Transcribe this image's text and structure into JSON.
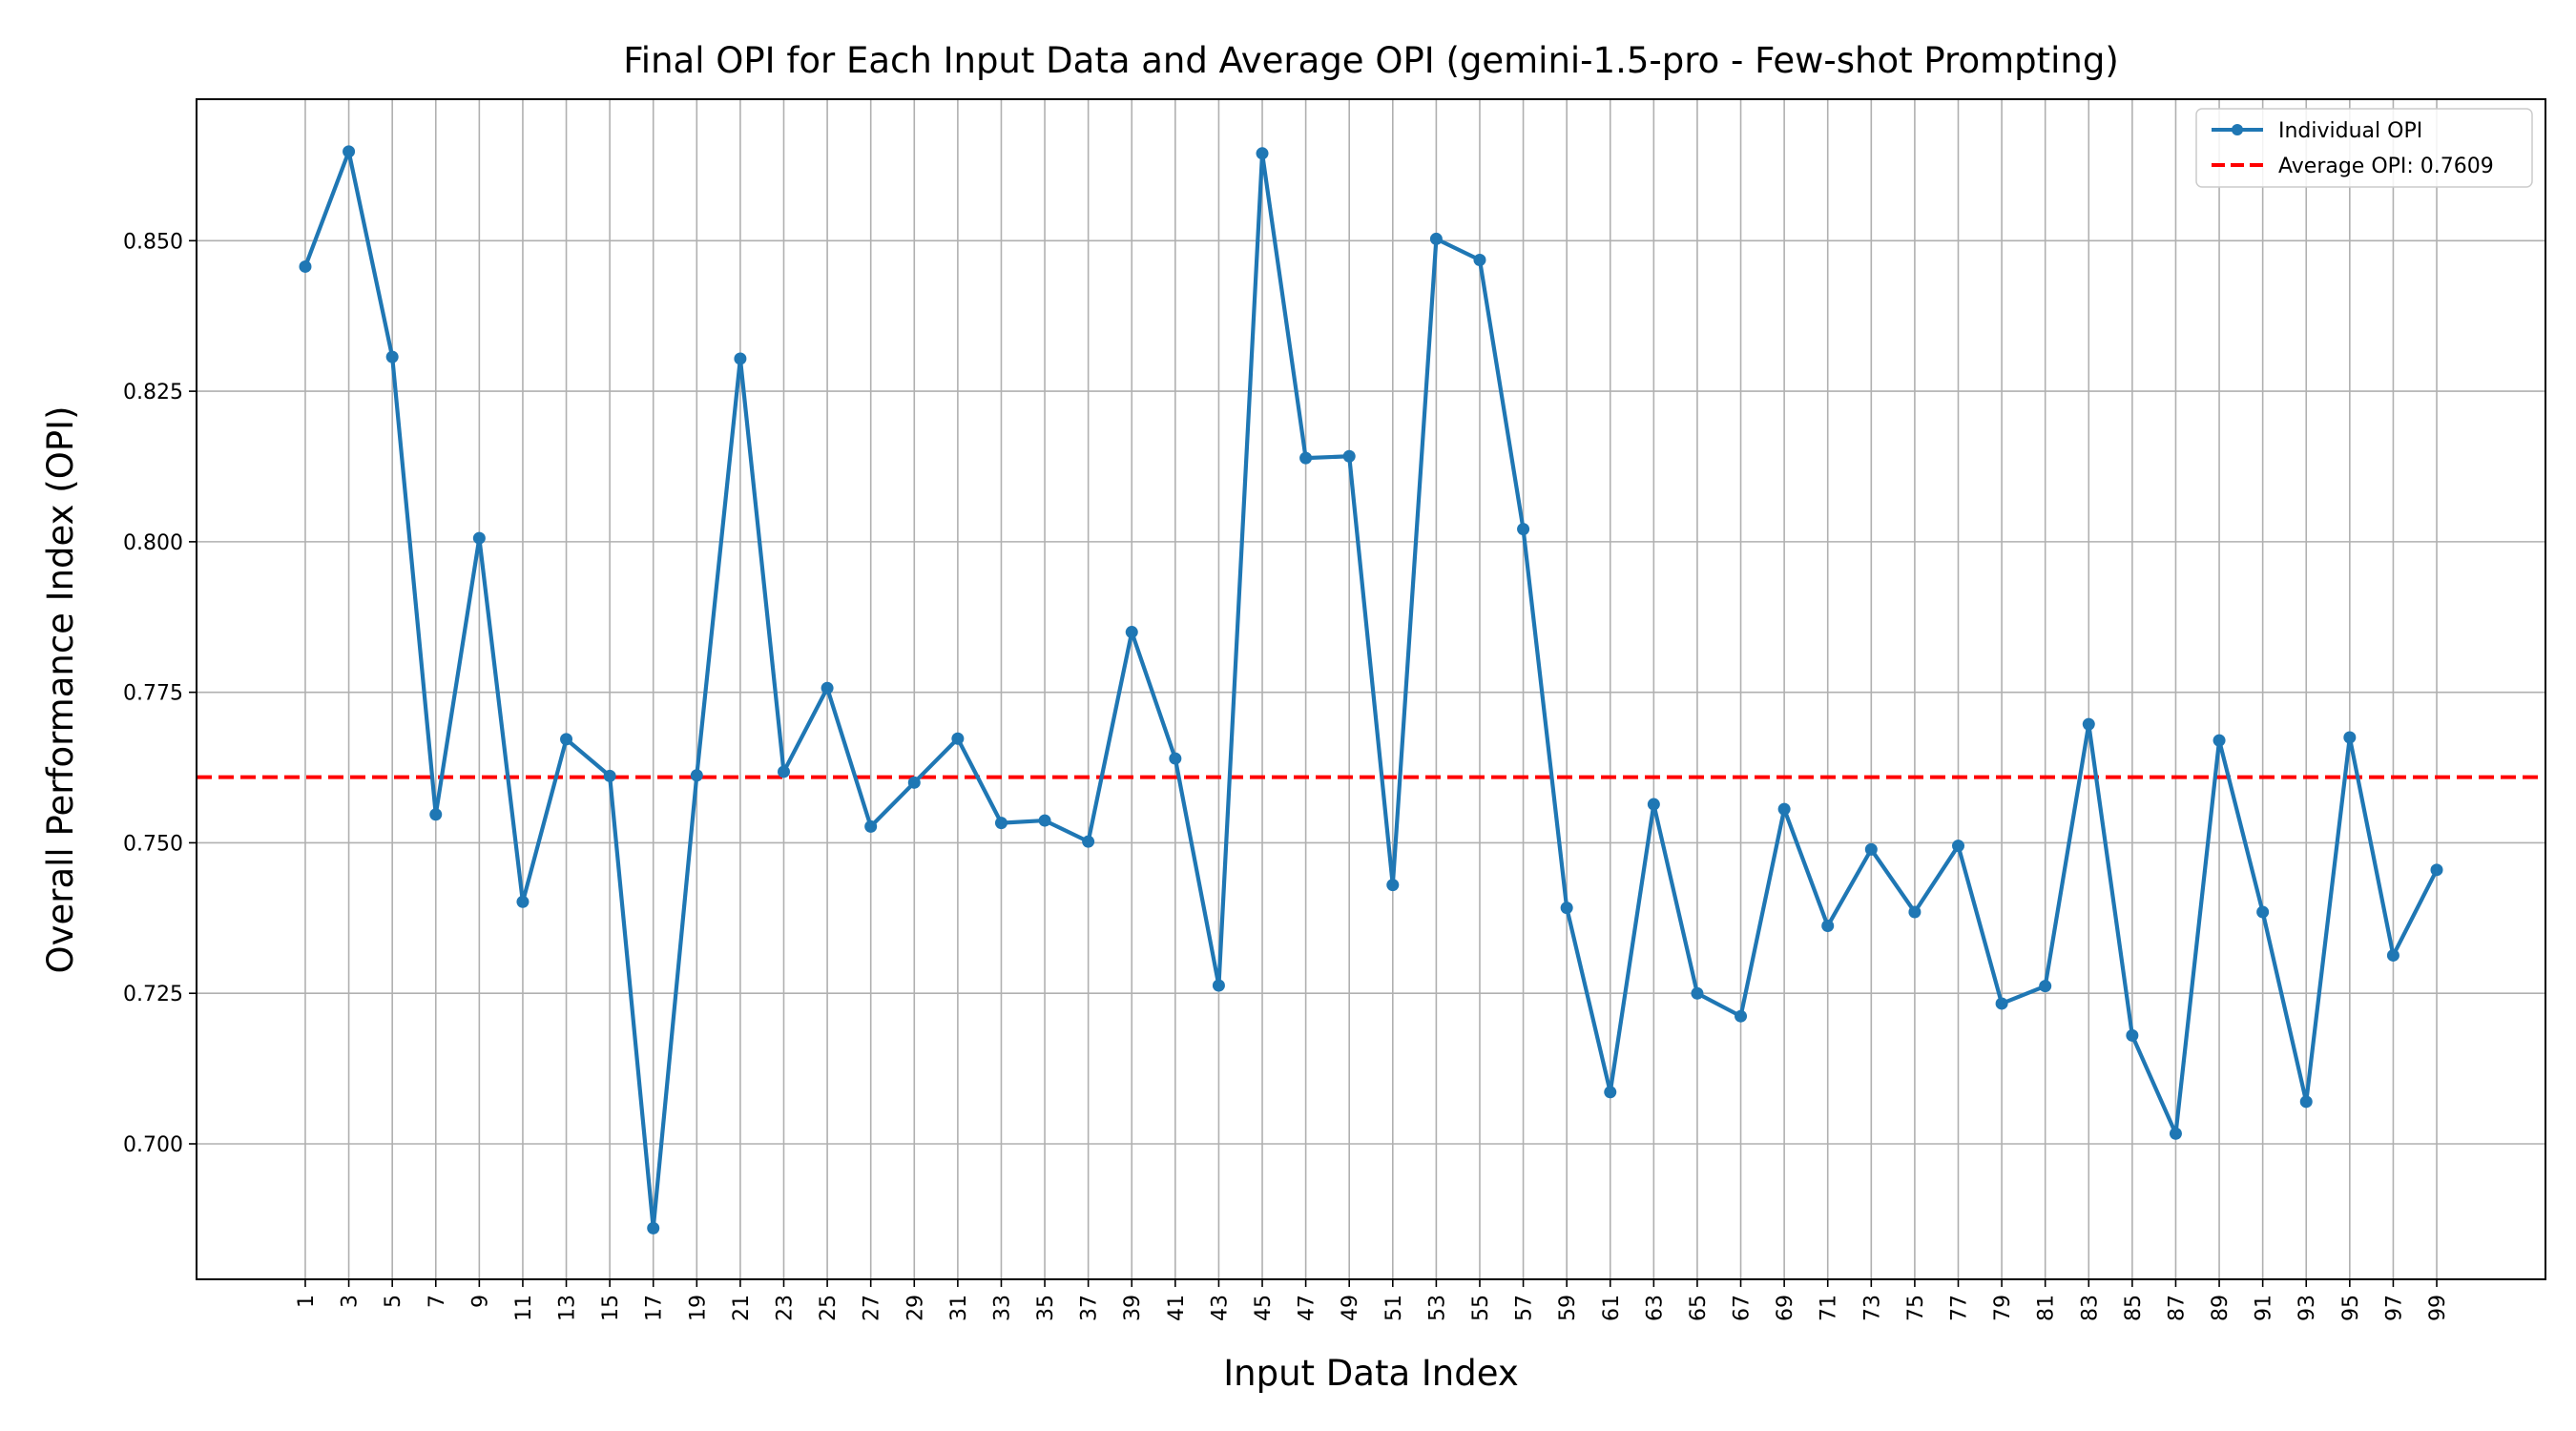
{
  "chart_data": {
    "type": "line",
    "title": "Final OPI for Each Input Data and Average OPI (gemini-1.5-pro - Few-shot Prompting)",
    "xlabel": "Input Data Index",
    "ylabel": "Overall Performance Index (OPI)",
    "x": [
      1,
      3,
      5,
      7,
      9,
      11,
      13,
      15,
      17,
      19,
      21,
      23,
      25,
      27,
      29,
      31,
      33,
      35,
      37,
      39,
      41,
      43,
      45,
      47,
      49,
      51,
      53,
      55,
      57,
      59,
      61,
      63,
      65,
      67,
      69,
      71,
      73,
      75,
      77,
      79,
      81,
      83,
      85,
      87,
      89,
      91,
      93,
      95,
      97,
      99
    ],
    "x_tick_labels": [
      "1",
      "3",
      "5",
      "7",
      "9",
      "11",
      "13",
      "15",
      "17",
      "19",
      "21",
      "23",
      "25",
      "27",
      "29",
      "31",
      "33",
      "35",
      "37",
      "39",
      "41",
      "43",
      "45",
      "47",
      "49",
      "51",
      "53",
      "55",
      "57",
      "59",
      "61",
      "63",
      "65",
      "67",
      "69",
      "71",
      "73",
      "75",
      "77",
      "79",
      "81",
      "83",
      "85",
      "87",
      "89",
      "91",
      "93",
      "95",
      "97",
      "99"
    ],
    "y_ticks": [
      0.7,
      0.725,
      0.75,
      0.775,
      0.8,
      0.825,
      0.85
    ],
    "y_tick_labels": [
      "0.700",
      "0.725",
      "0.750",
      "0.775",
      "0.800",
      "0.825",
      "0.850"
    ],
    "xlim": [
      -4,
      104
    ],
    "ylim": [
      0.6775,
      0.8735
    ],
    "grid": true,
    "legend_position": "top-right",
    "series": [
      {
        "name": "Individual OPI",
        "color": "#1f77b4",
        "style": "solid-with-markers",
        "values": [
          0.8457,
          0.8648,
          0.8307,
          0.7547,
          0.8006,
          0.7402,
          0.7672,
          0.7611,
          0.686,
          0.7612,
          0.8304,
          0.7618,
          0.7757,
          0.7527,
          0.76,
          0.7673,
          0.7533,
          0.7537,
          0.7502,
          0.785,
          0.764,
          0.7263,
          0.8645,
          0.8139,
          0.8142,
          0.743,
          0.8503,
          0.8468,
          0.8021,
          0.7392,
          0.7086,
          0.7564,
          0.725,
          0.7212,
          0.7556,
          0.7362,
          0.7489,
          0.7385,
          0.7495,
          0.7233,
          0.7262,
          0.7697,
          0.718,
          0.7017,
          0.767,
          0.7385,
          0.707,
          0.7675,
          0.7313,
          0.7455
        ]
      },
      {
        "name": "Average OPI: 0.7609",
        "color": "#ff0000",
        "style": "dashed",
        "constant": 0.7609
      }
    ]
  }
}
